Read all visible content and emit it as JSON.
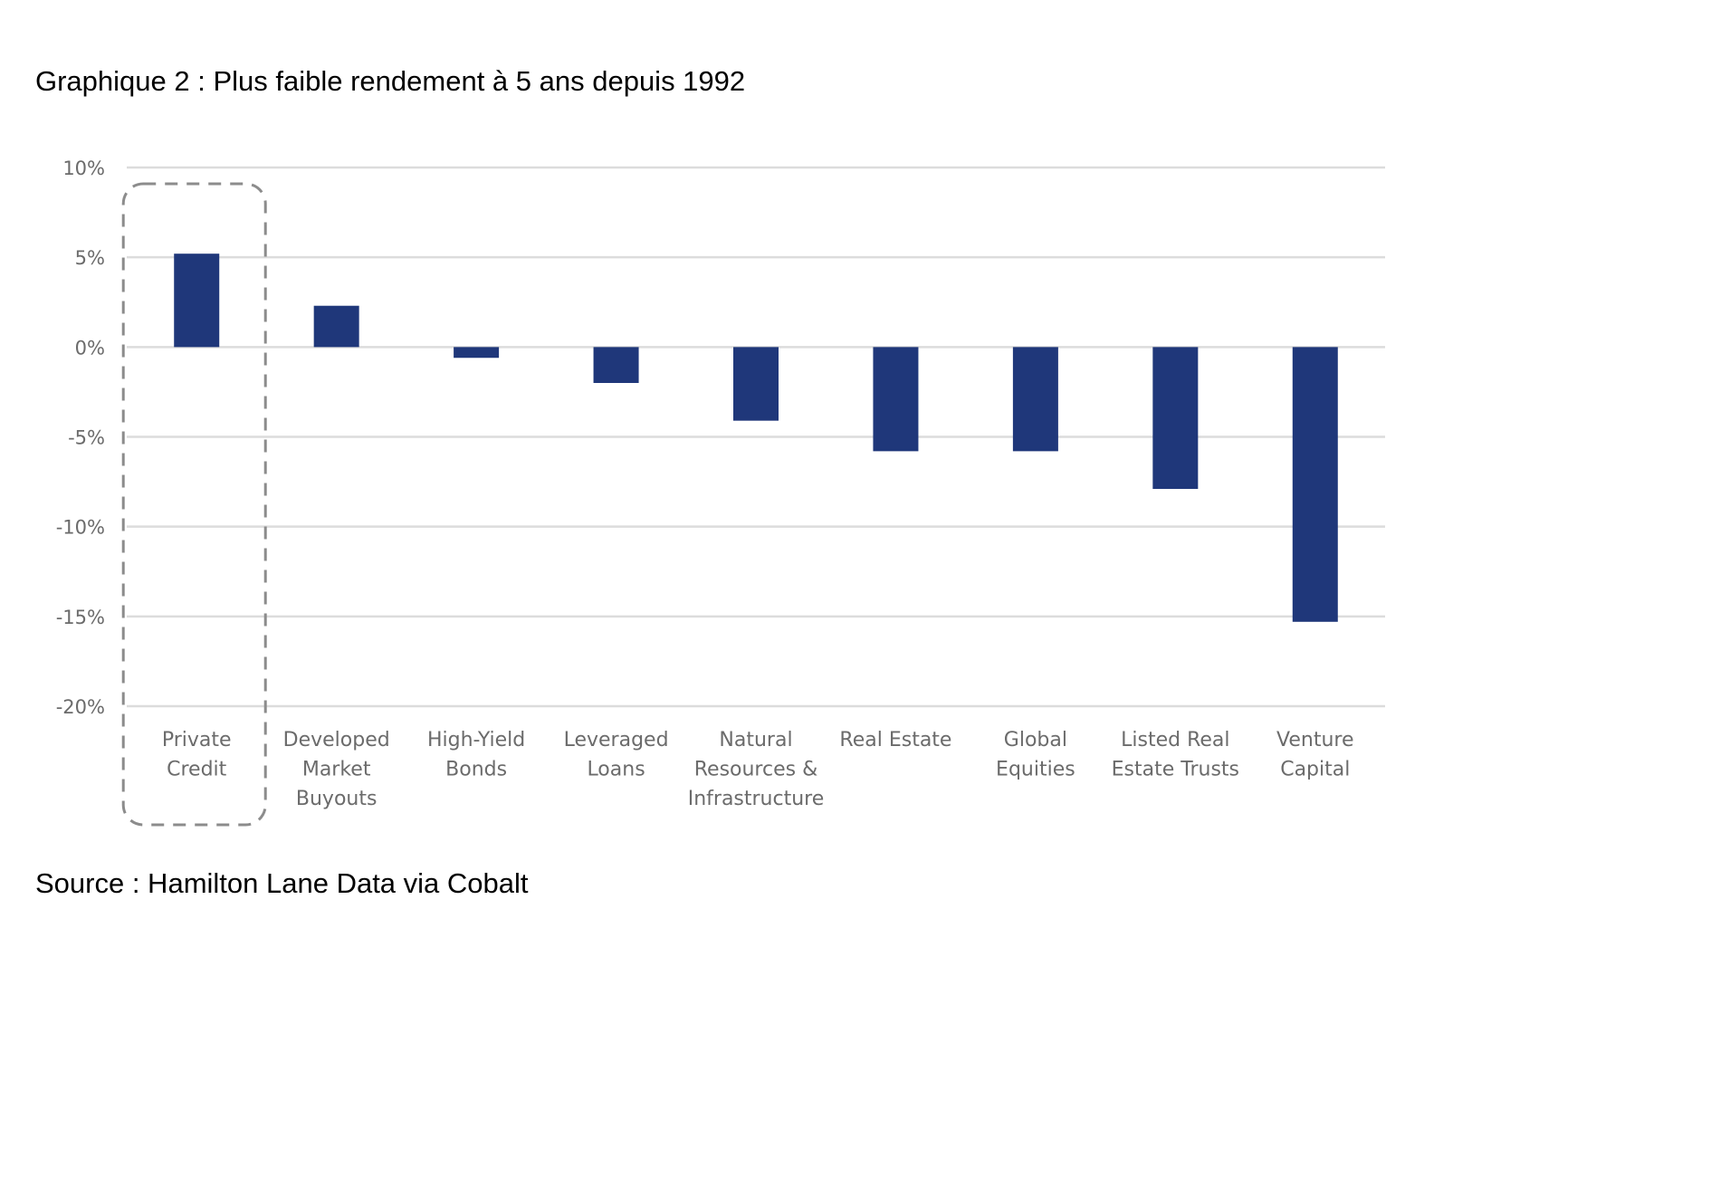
{
  "chart_data": {
    "type": "bar",
    "title": "Graphique 2 : Plus faible rendement à 5 ans depuis 1992",
    "source": "Source : Hamilton Lane Data via Cobalt",
    "xlabel": "",
    "ylabel": "",
    "ylim": [
      -20,
      10
    ],
    "yticks": [
      10,
      5,
      0,
      -5,
      -10,
      -15,
      -20
    ],
    "ytick_labels": [
      "10%",
      "5%",
      "0%",
      "-5%",
      "-10%",
      "-15%",
      "-20%"
    ],
    "grid": true,
    "bar_color": "#1f377a",
    "categories": [
      [
        "Private",
        "Credit"
      ],
      [
        "Developed",
        "Market",
        "Buyouts"
      ],
      [
        "High-Yield",
        "Bonds"
      ],
      [
        "Leveraged",
        "Loans"
      ],
      [
        "Natural",
        "Resources &",
        "Infrastructure"
      ],
      [
        "Real Estate"
      ],
      [
        "Global",
        "Equities"
      ],
      [
        "Listed Real",
        "Estate Trusts"
      ],
      [
        "Venture",
        "Capital"
      ]
    ],
    "values": [
      5.2,
      2.3,
      -0.6,
      -2.0,
      -4.1,
      -5.8,
      -5.8,
      -7.9,
      -15.3
    ],
    "highlight": {
      "category_index": 0,
      "style": "dashed-rounded-box",
      "color": "#8c8c8c"
    }
  }
}
